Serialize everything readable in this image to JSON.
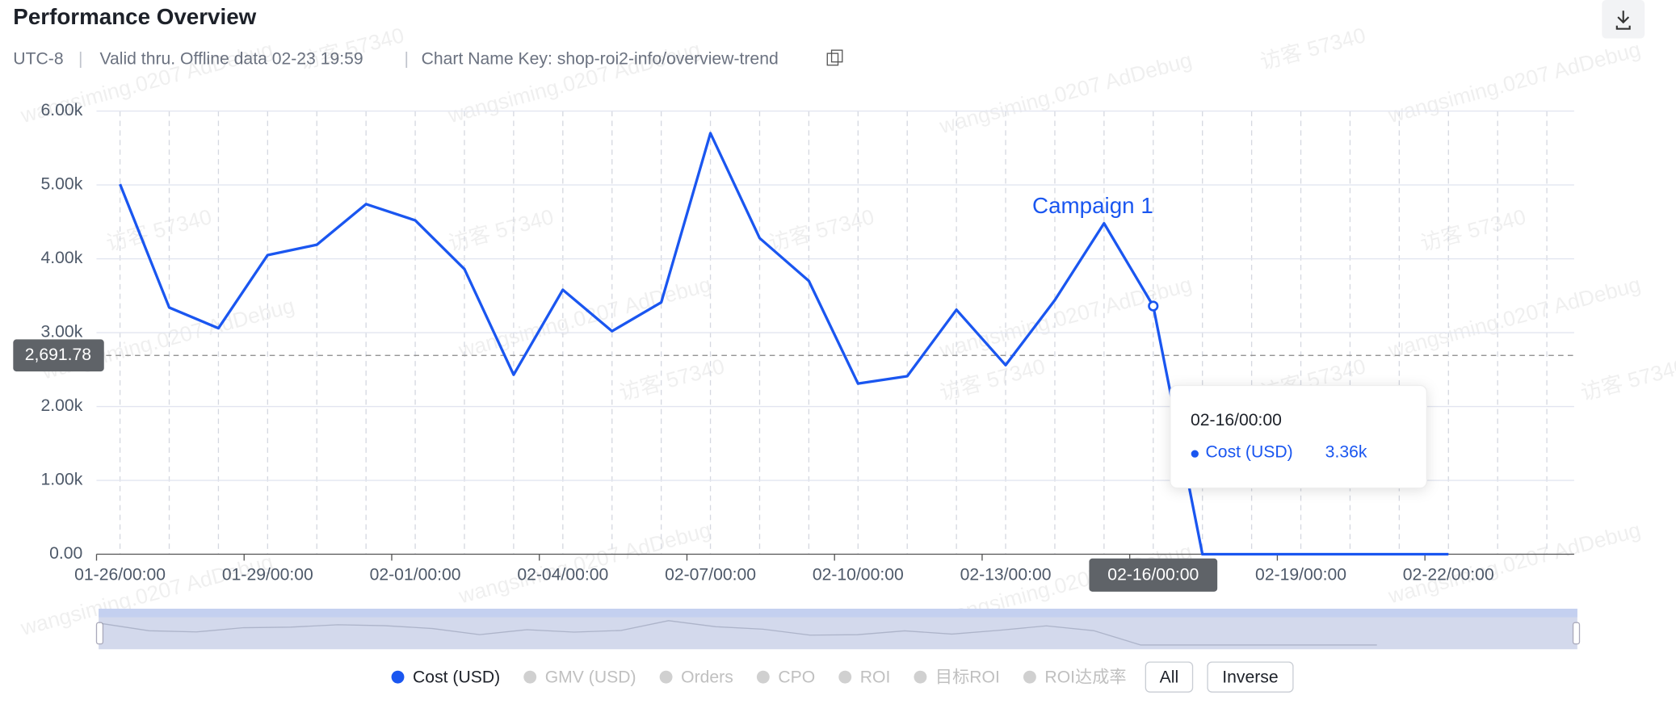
{
  "chart_data": {
    "type": "line",
    "title": "Performance Overview",
    "subtitle": [
      "UTC-8",
      "Valid thru. Offline data 02-23 19:59",
      "Chart Name Key: shop-roi2-info/overview-trend"
    ],
    "watermarks": [
      "wangsiming.0207 AdDebug",
      "访客 57340"
    ],
    "categories": [
      "01-26/00:00",
      null,
      null,
      "01-29/00:00",
      null,
      null,
      "02-01/00:00",
      null,
      null,
      "02-04/00:00",
      null,
      null,
      "02-07/00:00",
      null,
      null,
      "02-10/00:00",
      null,
      null,
      "02-13/00:00",
      null,
      null,
      "02-16/00:00",
      null,
      null,
      "02-19/00:00",
      null,
      null,
      "02-22/00:00",
      null,
      null
    ],
    "series": [
      {
        "name": "Cost (USD)",
        "color": "#1a56f0",
        "values": [
          5010,
          3340,
          3060,
          4050,
          4190,
          4740,
          4520,
          3860,
          2430,
          3580,
          3020,
          3410,
          5700,
          4280,
          3700,
          2310,
          2410,
          3310,
          2560,
          3440,
          4480,
          3360,
          0,
          0,
          0,
          0,
          0,
          0,
          null,
          null
        ]
      }
    ],
    "inactive_series": [
      "GMV (USD)",
      "Orders",
      "CPO",
      "ROI",
      "目标ROI",
      "ROI达成率"
    ],
    "buttons": [
      "All",
      "Inverse"
    ],
    "ylim": [
      0,
      6000
    ],
    "yticks": [
      {
        "value": 0,
        "label": "0.00"
      },
      {
        "value": 1000,
        "label": "1.00k"
      },
      {
        "value": 2000,
        "label": "2.00k"
      },
      {
        "value": 3000,
        "label": "3.00k"
      },
      {
        "value": 4000,
        "label": "4.00k"
      },
      {
        "value": 5000,
        "label": "5.00k"
      },
      {
        "value": 6000,
        "label": "6.00k"
      }
    ],
    "grid": true,
    "reference_line": {
      "value": 2691.78,
      "label": "2,691.78"
    },
    "annotation": {
      "text": "Campaign 1",
      "index": 21
    },
    "highlight_index": 21,
    "tooltip": {
      "title": "02-16/00:00",
      "label": "Cost (USD)",
      "value": "3.36k"
    }
  }
}
